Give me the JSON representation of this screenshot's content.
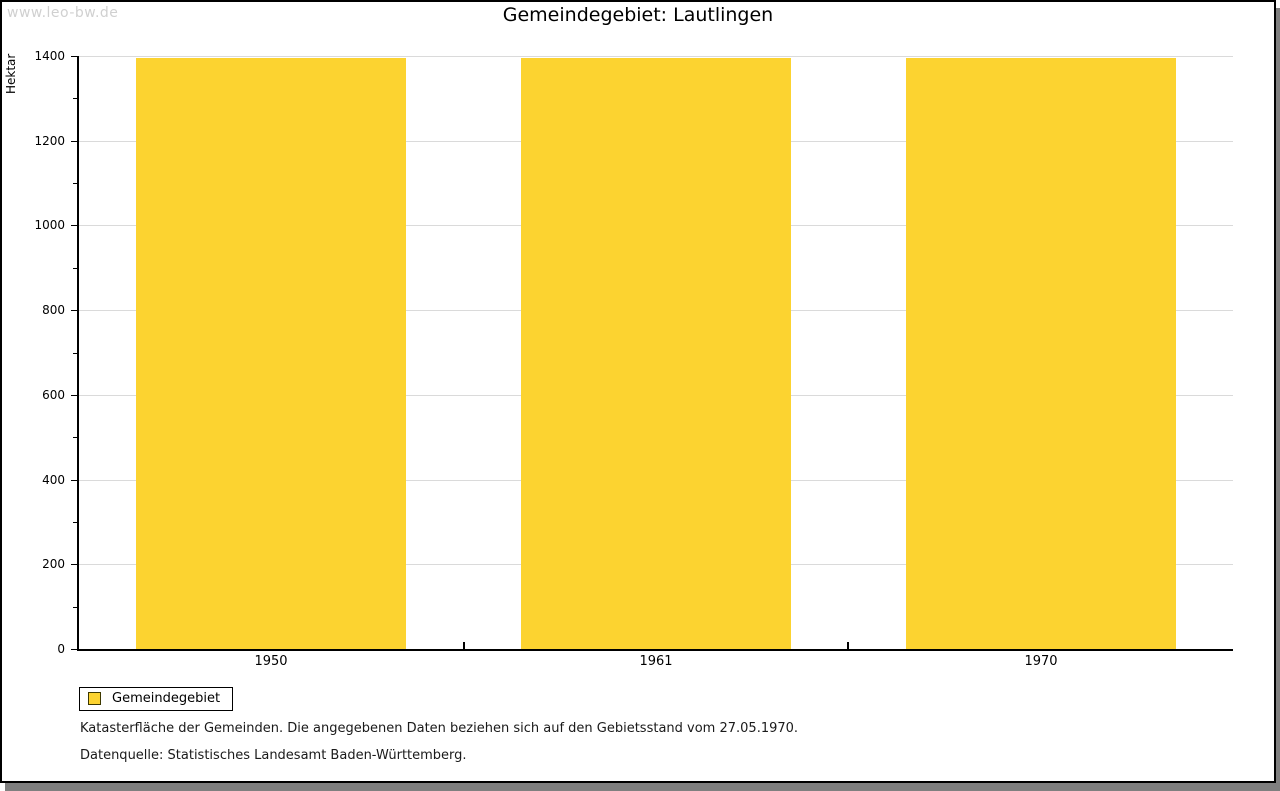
{
  "watermark": "www.leo-bw.de",
  "title": "Gemeindegebiet: Lautlingen",
  "chart_data": {
    "type": "bar",
    "title": "Gemeindegebiet: Lautlingen",
    "categories": [
      "1950",
      "1961",
      "1970"
    ],
    "series": [
      {
        "name": "Gemeindegebiet",
        "values": [
          1395,
          1395,
          1395
        ]
      }
    ],
    "xlabel": "",
    "ylabel": "Hektar",
    "ylim": [
      0,
      1400
    ],
    "ytick_major_step": 200,
    "ytick_minor_step": 100,
    "ytick_labels": [
      "0",
      "200",
      "400",
      "600",
      "800",
      "1000",
      "1200",
      "1400"
    ],
    "grid": true,
    "legend_position": "bottom-left",
    "bar_color": "#fcd330"
  },
  "legend": {
    "items": [
      {
        "label": "Gemeindegebiet",
        "color": "#fcd330"
      }
    ]
  },
  "footnotes": [
    "Katasterfläche der Gemeinden. Die angegebenen Daten beziehen sich auf den Gebietsstand vom 27.05.1970.",
    "Datenquelle: Statistisches Landesamt Baden-Württemberg."
  ],
  "colors": {
    "bar": "#fcd330",
    "grid": "#dadada",
    "axis": "#000000",
    "watermark": "#d0d0d0",
    "shadow": "#7f7f7f"
  }
}
